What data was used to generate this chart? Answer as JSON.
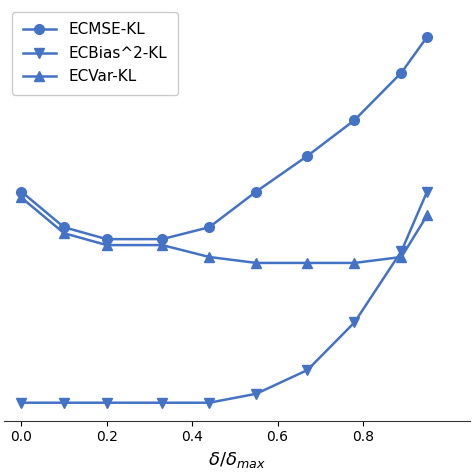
{
  "x": [
    0.0,
    0.1,
    0.2,
    0.33,
    0.44,
    0.55,
    0.67,
    0.78,
    0.89,
    0.95
  ],
  "ecmse": [
    0.72,
    0.6,
    0.56,
    0.56,
    0.6,
    0.72,
    0.84,
    0.96,
    1.12,
    1.24
  ],
  "ecbias2": [
    0.01,
    0.01,
    0.01,
    0.01,
    0.01,
    0.04,
    0.12,
    0.28,
    0.52,
    0.72
  ],
  "ecvar": [
    0.7,
    0.58,
    0.54,
    0.54,
    0.5,
    0.48,
    0.48,
    0.48,
    0.5,
    0.64
  ],
  "color": "#4472C4",
  "xlabel": "$\\delta/\\delta_{max}$",
  "legend_labels": [
    "ECMSE-KL",
    "ECBias^2-KL",
    "ECVar-KL"
  ],
  "markers": [
    "o",
    "v",
    "^"
  ],
  "xlim": [
    -0.04,
    1.05
  ],
  "ylim": [
    -0.05,
    1.35
  ],
  "xticks": [
    0.0,
    0.2,
    0.4,
    0.6,
    0.8
  ],
  "figsize": [
    4.74,
    4.74
  ],
  "dpi": 100
}
